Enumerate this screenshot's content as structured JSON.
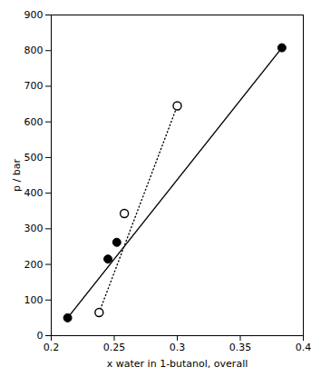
{
  "chart_data": {
    "type": "scatter",
    "xlabel": "x water in 1-butanol, overall",
    "ylabel": "p / bar",
    "xlim": [
      0.2,
      0.4
    ],
    "ylim": [
      0,
      900
    ],
    "xticks": [
      0.2,
      0.25,
      0.3,
      0.35,
      0.4
    ],
    "yticks": [
      0,
      100,
      200,
      300,
      400,
      500,
      600,
      700,
      800,
      900
    ],
    "grid": false,
    "series": [
      {
        "type": "line",
        "line_style": "solid",
        "color": "#000000",
        "x": [
          0.213,
          0.383
        ],
        "values": [
          50,
          808
        ]
      },
      {
        "type": "line",
        "line_style": "dotted",
        "color": "#000000",
        "x": [
          0.238,
          0.3
        ],
        "values": [
          65,
          645
        ]
      },
      {
        "type": "scatter",
        "marker": "filled_circle",
        "color": "#000000",
        "x": [
          0.213,
          0.245,
          0.252,
          0.383
        ],
        "values": [
          50,
          215,
          262,
          808
        ]
      },
      {
        "type": "scatter",
        "marker": "open_circle",
        "color": "#000000",
        "x": [
          0.238,
          0.258,
          0.3
        ],
        "values": [
          65,
          343,
          645
        ]
      }
    ]
  }
}
